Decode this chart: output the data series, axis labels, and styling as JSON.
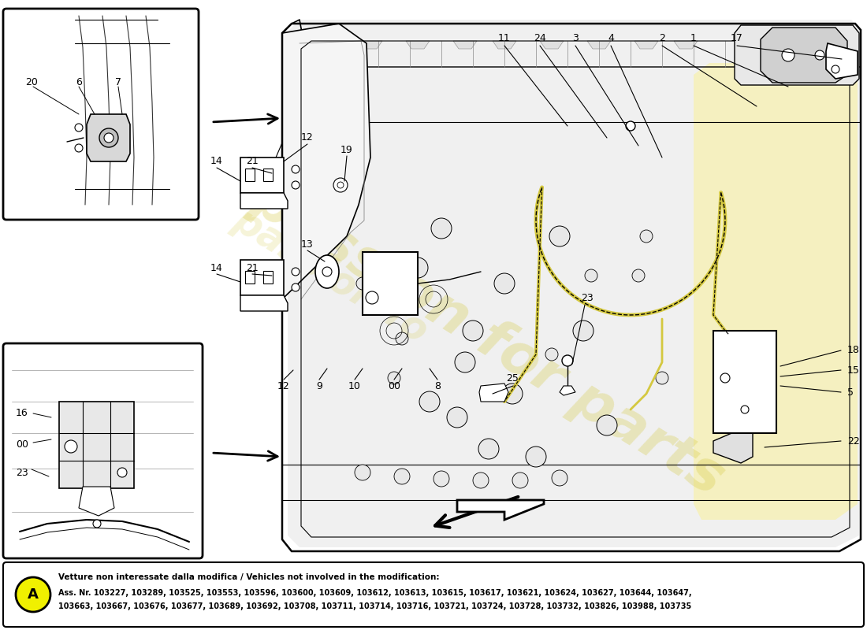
{
  "bg_color": "#ffffff",
  "note_title": "Vetture non interessate dalla modifica / Vehicles not involved in the modification:",
  "note_line1": "Ass. Nr. 103227, 103289, 103525, 103553, 103596, 103600, 103609, 103612, 103613, 103615, 103617, 103621, 103624, 103627, 103644, 103647,",
  "note_line2": "103663, 103667, 103676, 103677, 103689, 103692, 103708, 103711, 103714, 103716, 103721, 103724, 103728, 103732, 103826, 103988, 103735",
  "note_label": "A",
  "lc": "#000000",
  "gray": "#aaaaaa",
  "light_gray": "#cccccc",
  "yellow_cable": "#d4c840",
  "watermark_color": "#d4c840",
  "note_yellow": "#f0f000"
}
